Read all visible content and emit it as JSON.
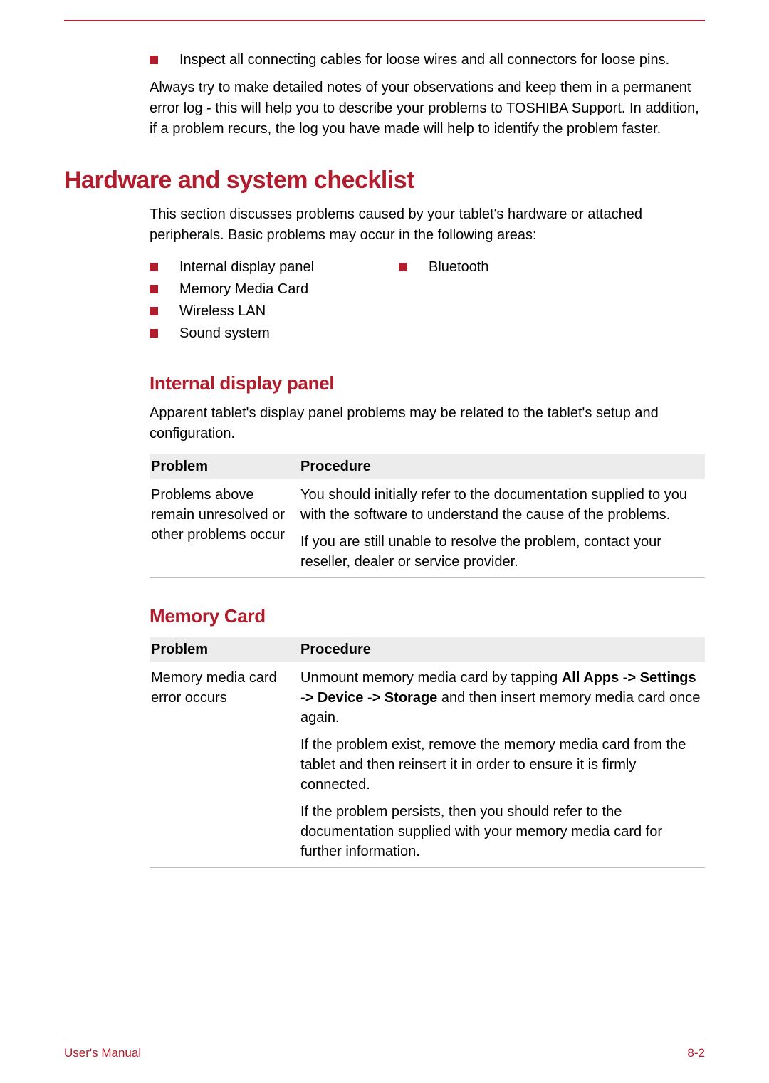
{
  "colors": {
    "accent": "#b01e2e",
    "table_header_bg": "#ececec",
    "rule_gray": "#bdbdbd",
    "text": "#000000",
    "background": "#ffffff"
  },
  "typography": {
    "body_fontsize_pt": 15,
    "h1_fontsize_pt": 26,
    "h2_fontsize_pt": 20,
    "font_family": "Arial"
  },
  "intro": {
    "bullet": "Inspect all connecting cables for loose wires and all connectors for loose pins.",
    "para": "Always try to make detailed notes of your observations and keep them in a permanent error log - this will help you to describe your problems to TOSHIBA Support. In addition, if a problem recurs, the log you have made will help to identify the problem faster."
  },
  "hardware_checklist": {
    "title": "Hardware and system checklist",
    "intro": "This section discusses problems caused by your tablet's hardware or attached peripherals. Basic problems may occur in the following areas:",
    "areas_col_a": [
      "Internal display panel",
      "Memory Media Card",
      "Wireless LAN",
      "Sound system"
    ],
    "areas_col_b": [
      "Bluetooth"
    ]
  },
  "internal_display": {
    "title": "Internal display panel",
    "intro": "Apparent tablet's display panel problems may be related to the tablet's setup and configuration.",
    "table": {
      "headers": [
        "Problem",
        "Procedure"
      ],
      "problem": "Problems above remain unresolved or other problems occur",
      "procedures": [
        "You should initially refer to the documentation supplied to you with the software to understand the cause of the problems.",
        "If you are still unable to resolve the problem, contact your reseller, dealer or service provider."
      ]
    }
  },
  "memory_card": {
    "title": "Memory Card",
    "table": {
      "headers": [
        "Problem",
        "Procedure"
      ],
      "problem": "Memory media card error occurs",
      "procedures": [
        {
          "pre": "Unmount memory media card by tapping ",
          "bold": "All Apps -> Settings -> Device -> Storage",
          "post": " and then insert memory media card once again."
        },
        {
          "text": "If the problem exist, remove the memory media card from the tablet and then reinsert it in order to ensure it is firmly connected."
        },
        {
          "text": "If the problem persists, then you should refer to the documentation supplied with your memory media card for further information."
        }
      ]
    }
  },
  "footer": {
    "left": "User's Manual",
    "right": "8-2"
  }
}
